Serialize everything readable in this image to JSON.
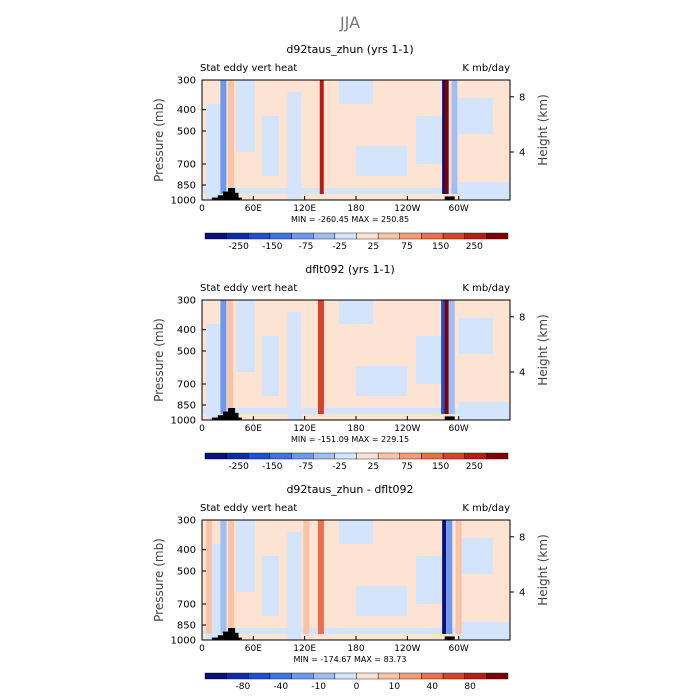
{
  "figure": {
    "title": "JJA"
  },
  "colors": {
    "levels_main": [
      "#08107a",
      "#0d2ca8",
      "#1f4fd4",
      "#3f74e4",
      "#6e98ee",
      "#9fbef4",
      "#d3e4fc",
      "#fde3d1",
      "#f9c3a6",
      "#f39c76",
      "#e8704a",
      "#d6432a",
      "#b61e13",
      "#7f0000"
    ],
    "levels_diff": [
      "#08107a",
      "#0d2ca8",
      "#1f4fd4",
      "#3f74e4",
      "#6e98ee",
      "#9fbef4",
      "#d3e4fc",
      "#fde3d1",
      "#f9c3a6",
      "#f39c76",
      "#e8704a",
      "#d6432a",
      "#b61e13",
      "#7f0000"
    ],
    "topography": "#000000"
  },
  "chart_data": [
    {
      "type": "heatmap",
      "title": "d92taus_zhun (yrs 1-1)",
      "left_label": "Stat eddy vert heat",
      "right_label": "K mb/day",
      "ylabel": "Pressure (mb)",
      "y2label": "Height (km)",
      "yticks": [
        "300",
        "400",
        "500",
        "700",
        "850",
        "1000"
      ],
      "y2ticks": [
        "8",
        "4"
      ],
      "xticks": [
        "0",
        "60E",
        "120E",
        "180",
        "120W",
        "60W"
      ],
      "stats": "MIN = -260.45   MAX = 250.85",
      "min": -260.45,
      "max": 250.85,
      "colorbar_labels": [
        "-250",
        "-150",
        "-75",
        "-25",
        "25",
        "75",
        "150",
        "250"
      ],
      "features": [
        {
          "lon": 25,
          "value": -80
        },
        {
          "lon": 34,
          "value": 60
        },
        {
          "lon": 140,
          "value": 220
        },
        {
          "lon": 283,
          "value": -260
        },
        {
          "lon": 286,
          "value": 250
        },
        {
          "lon": 295,
          "value": -30
        }
      ]
    },
    {
      "type": "heatmap",
      "title": "dflt092 (yrs 1-1)",
      "left_label": "Stat eddy vert heat",
      "right_label": "K mb/day",
      "ylabel": "Pressure (mb)",
      "y2label": "Height (km)",
      "yticks": [
        "300",
        "400",
        "500",
        "700",
        "850",
        "1000"
      ],
      "y2ticks": [
        "8",
        "4"
      ],
      "xticks": [
        "0",
        "60E",
        "120E",
        "180",
        "120W",
        "60W"
      ],
      "stats": "MIN = -151.09   MAX = 229.15",
      "min": -151.09,
      "max": 229.15,
      "colorbar_labels": [
        "-250",
        "-150",
        "-75",
        "-25",
        "25",
        "75",
        "150",
        "250"
      ],
      "features": [
        {
          "lon": 25,
          "value": -60
        },
        {
          "lon": 33,
          "value": 40
        },
        {
          "lon": 139,
          "value": 150
        },
        {
          "lon": 283,
          "value": -150
        },
        {
          "lon": 286,
          "value": 229
        },
        {
          "lon": 292,
          "value": -25
        }
      ]
    },
    {
      "type": "heatmap",
      "title": "d92taus_zhun - dflt092",
      "left_label": "Stat eddy vert heat",
      "right_label": "K mb/day",
      "ylabel": "Pressure (mb)",
      "y2label": "Height (km)",
      "yticks": [
        "300",
        "400",
        "500",
        "700",
        "850",
        "1000"
      ],
      "y2ticks": [
        "8",
        "4"
      ],
      "xticks": [
        "0",
        "60E",
        "120E",
        "180",
        "120W",
        "60W"
      ],
      "stats": "MIN = -174.67   MAX =  83.73",
      "min": -174.67,
      "max": 83.73,
      "colorbar_labels": [
        "-80",
        "-40",
        "-10",
        "0",
        "10",
        "40",
        "80"
      ],
      "features": [
        {
          "lon": 8,
          "value": 15
        },
        {
          "lon": 25,
          "value": -40
        },
        {
          "lon": 34,
          "value": 40
        },
        {
          "lon": 122,
          "value": 30
        },
        {
          "lon": 139,
          "value": 80
        },
        {
          "lon": 283,
          "value": -170
        },
        {
          "lon": 289,
          "value": -60
        },
        {
          "lon": 300,
          "value": 30
        }
      ]
    }
  ]
}
